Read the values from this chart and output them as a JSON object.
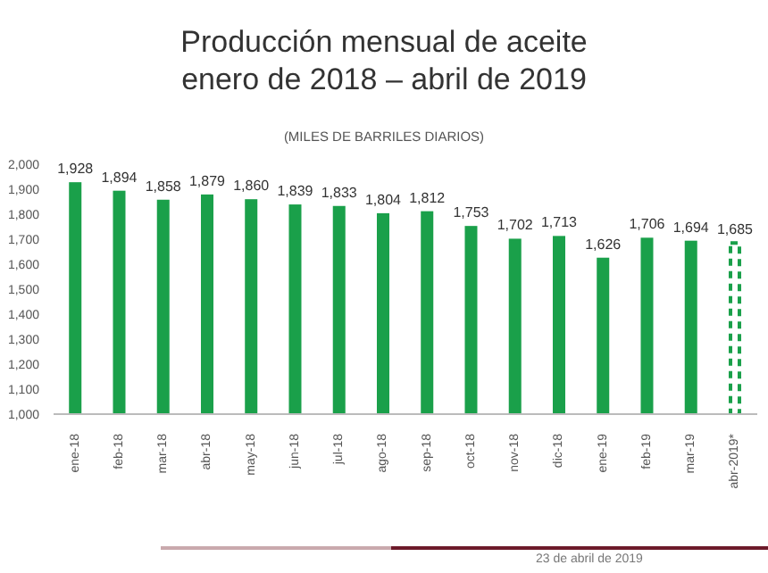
{
  "chart_data": {
    "type": "bar",
    "title": "Producción mensual de aceite",
    "subtitle": "enero de 2018 – abril de 2019",
    "ylabel": "(MILES DE BARRILES DIARIOS)",
    "categories": [
      "ene-18",
      "feb-18",
      "mar-18",
      "abr-18",
      "may-18",
      "jun-18",
      "jul-18",
      "ago-18",
      "sep-18",
      "oct-18",
      "nov-18",
      "dic-18",
      "ene-19",
      "feb-19",
      "mar-19",
      "abr-2019*"
    ],
    "series": [
      {
        "color": "#1aa04a",
        "values": [
          1928,
          1894,
          1858,
          1879,
          1860,
          1839,
          1833,
          1804,
          1812,
          1753,
          1702,
          1713,
          1626,
          1706,
          1694,
          null
        ],
        "value_labels": [
          "1,928",
          "1,894",
          "1,858",
          "1,879",
          "1,860",
          "1,839",
          "1,833",
          "1,804",
          "1,812",
          "1,753",
          "1,702",
          "1,713",
          "1,626",
          "1,706",
          "1,694",
          null
        ]
      },
      {
        "color": "#1aa04a",
        "line_style": "dashed",
        "values": [
          null,
          null,
          null,
          null,
          null,
          null,
          null,
          null,
          null,
          null,
          null,
          null,
          null,
          null,
          null,
          1685
        ],
        "value_labels": [
          null,
          null,
          null,
          null,
          null,
          null,
          null,
          null,
          null,
          null,
          null,
          null,
          null,
          null,
          null,
          "1,685"
        ]
      }
    ],
    "stacked": true,
    "ylim": [
      1000,
      2000
    ],
    "yticks": [
      {
        "value": 1000,
        "label": "1,000"
      },
      {
        "value": 1100,
        "label": "1,100"
      },
      {
        "value": 1200,
        "label": "1,200"
      },
      {
        "value": 1300,
        "label": "1,300"
      },
      {
        "value": 1400,
        "label": "1,400"
      },
      {
        "value": 1500,
        "label": "1,500"
      },
      {
        "value": 1600,
        "label": "1,600"
      },
      {
        "value": 1700,
        "label": "1,700"
      },
      {
        "value": 1800,
        "label": "1,800"
      },
      {
        "value": 1900,
        "label": "1,900"
      },
      {
        "value": 2000,
        "label": "2,000"
      }
    ],
    "grid": false,
    "legend": false,
    "annotations": [
      "23 de abril de 2019"
    ]
  }
}
